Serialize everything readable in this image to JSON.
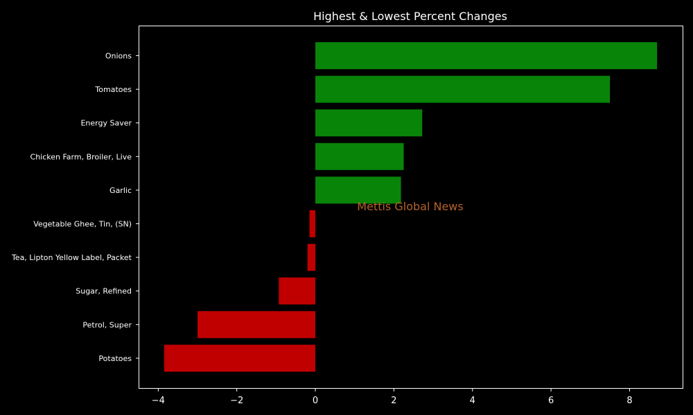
{
  "chart_data": {
    "type": "bar",
    "orientation": "horizontal",
    "title": "Highest & Lowest Percent Changes",
    "xlabel": "",
    "ylabel": "",
    "xlim": [
      -4.5,
      9.35
    ],
    "xticks": [
      -4,
      -2,
      0,
      2,
      4,
      6,
      8
    ],
    "xtick_labels": [
      "−4",
      "−2",
      "0",
      "2",
      "4",
      "6",
      "8"
    ],
    "categories": [
      "Onions",
      "Tomatoes",
      "Energy Saver",
      "Chicken Farm, Broiler, Live",
      "Garlic",
      "Vegetable Ghee, Tin, (SN)",
      "Tea, Lipton Yellow Label, Packet",
      "Sugar, Refined",
      "Petrol, Super",
      "Potatoes"
    ],
    "values": [
      8.7,
      7.5,
      2.72,
      2.25,
      2.18,
      -0.15,
      -0.2,
      -0.93,
      -3.0,
      -3.85
    ],
    "colors": {
      "positive": "#088408",
      "negative": "#c00000",
      "background": "#000000",
      "axis": "#ffffff",
      "watermark": "#b5622a"
    },
    "grid": false,
    "legend": "none"
  },
  "watermark": "Mettis Global News"
}
